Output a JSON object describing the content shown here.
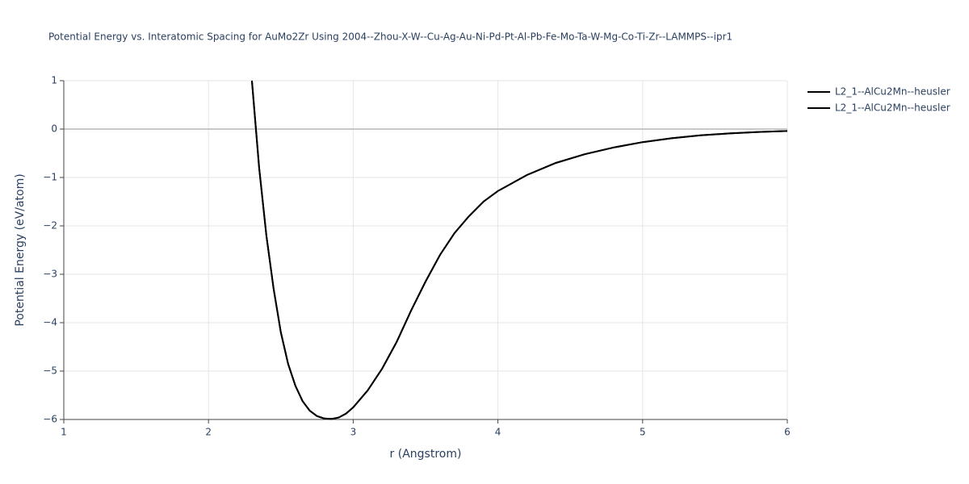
{
  "chart_data": {
    "type": "line",
    "title": "Potential Energy vs. Interatomic Spacing for AuMo2Zr Using 2004--Zhou-X-W--Cu-Ag-Au-Ni-Pd-Pt-Al-Pb-Fe-Mo-Ta-W-Mg-Co-Ti-Zr--LAMMPS--ipr1",
    "x_label": "r (Angstrom)",
    "y_label": "Potential Energy (eV/atom)",
    "x": [
      2.3,
      2.35,
      2.4,
      2.45,
      2.5,
      2.55,
      2.6,
      2.65,
      2.7,
      2.75,
      2.8,
      2.85,
      2.9,
      2.95,
      3.0,
      3.1,
      3.2,
      3.3,
      3.4,
      3.5,
      3.6,
      3.7,
      3.8,
      3.9,
      4.0,
      4.2,
      4.4,
      4.6,
      4.8,
      5.0,
      5.2,
      5.4,
      5.6,
      5.8,
      6.0
    ],
    "series": [
      {
        "name": "L2_1--AlCu2Mn--heusler",
        "color": "#000000",
        "values": [
          1.0,
          -0.8,
          -2.2,
          -3.3,
          -4.2,
          -4.85,
          -5.3,
          -5.62,
          -5.82,
          -5.93,
          -5.98,
          -5.99,
          -5.96,
          -5.88,
          -5.75,
          -5.4,
          -4.95,
          -4.4,
          -3.75,
          -3.15,
          -2.6,
          -2.15,
          -1.8,
          -1.5,
          -1.28,
          -0.95,
          -0.7,
          -0.52,
          -0.38,
          -0.27,
          -0.19,
          -0.13,
          -0.09,
          -0.06,
          -0.04
        ]
      },
      {
        "name": "L2_1--AlCu2Mn--heusler",
        "color": "#000000",
        "values": [
          1.0,
          -0.8,
          -2.2,
          -3.3,
          -4.2,
          -4.85,
          -5.3,
          -5.62,
          -5.82,
          -5.93,
          -5.98,
          -5.99,
          -5.96,
          -5.88,
          -5.75,
          -5.4,
          -4.95,
          -4.4,
          -3.75,
          -3.15,
          -2.6,
          -2.15,
          -1.8,
          -1.5,
          -1.28,
          -0.95,
          -0.7,
          -0.52,
          -0.38,
          -0.27,
          -0.19,
          -0.13,
          -0.09,
          -0.06,
          -0.04
        ]
      }
    ],
    "xlim": [
      1,
      6
    ],
    "xticks": [
      1,
      2,
      3,
      4,
      5,
      6
    ],
    "ylim": [
      -6,
      1
    ],
    "yticks": [
      {
        "value": -6,
        "label": "−6"
      },
      {
        "value": -5,
        "label": "−5"
      },
      {
        "value": -4,
        "label": "−4"
      },
      {
        "value": -3,
        "label": "−3"
      },
      {
        "value": -2,
        "label": "−2"
      },
      {
        "value": -1,
        "label": "−1"
      },
      0,
      1
    ],
    "grid": true,
    "legend": "right"
  }
}
